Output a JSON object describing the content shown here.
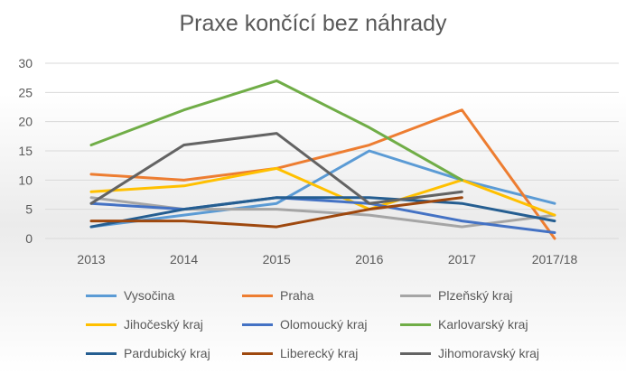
{
  "chart_data": {
    "type": "line",
    "title": "Praxe končící bez náhrady",
    "xlabel": "",
    "ylabel": "",
    "categories": [
      "2013",
      "2014",
      "2015",
      "2016",
      "2017",
      "2017/18"
    ],
    "y_ticks": [
      "0",
      "5",
      "10",
      "15",
      "20",
      "25",
      "30"
    ],
    "ylim": [
      0,
      30
    ],
    "grid": true,
    "legend_position": "bottom",
    "series": [
      {
        "name": "Vysočina",
        "color": "#5b9bd5",
        "values": [
          2,
          4,
          6,
          15,
          10,
          6
        ]
      },
      {
        "name": "Praha",
        "color": "#ed7d31",
        "values": [
          11,
          10,
          12,
          16,
          22,
          0
        ]
      },
      {
        "name": "Plzeňský kraj",
        "color": "#a5a5a5",
        "values": [
          7,
          5,
          5,
          4,
          2,
          4
        ]
      },
      {
        "name": "Jihočeský kraj",
        "color": "#ffc000",
        "values": [
          8,
          9,
          12,
          5,
          10,
          4
        ]
      },
      {
        "name": "Olomoucký kraj",
        "color": "#4472c4",
        "values": [
          6,
          5,
          7,
          6,
          3,
          1
        ]
      },
      {
        "name": "Karlovarský kraj",
        "color": "#70ad47",
        "values": [
          16,
          22,
          27,
          19,
          10,
          null
        ]
      },
      {
        "name": "Pardubický kraj",
        "color": "#255e91",
        "values": [
          2,
          5,
          7,
          7,
          6,
          3
        ]
      },
      {
        "name": "Liberecký kraj",
        "color": "#9e480e",
        "values": [
          3,
          3,
          2,
          5,
          7,
          null
        ]
      },
      {
        "name": "Jihomoravský kraj",
        "color": "#636363",
        "values": [
          6,
          16,
          18,
          6,
          8,
          null
        ]
      }
    ]
  }
}
